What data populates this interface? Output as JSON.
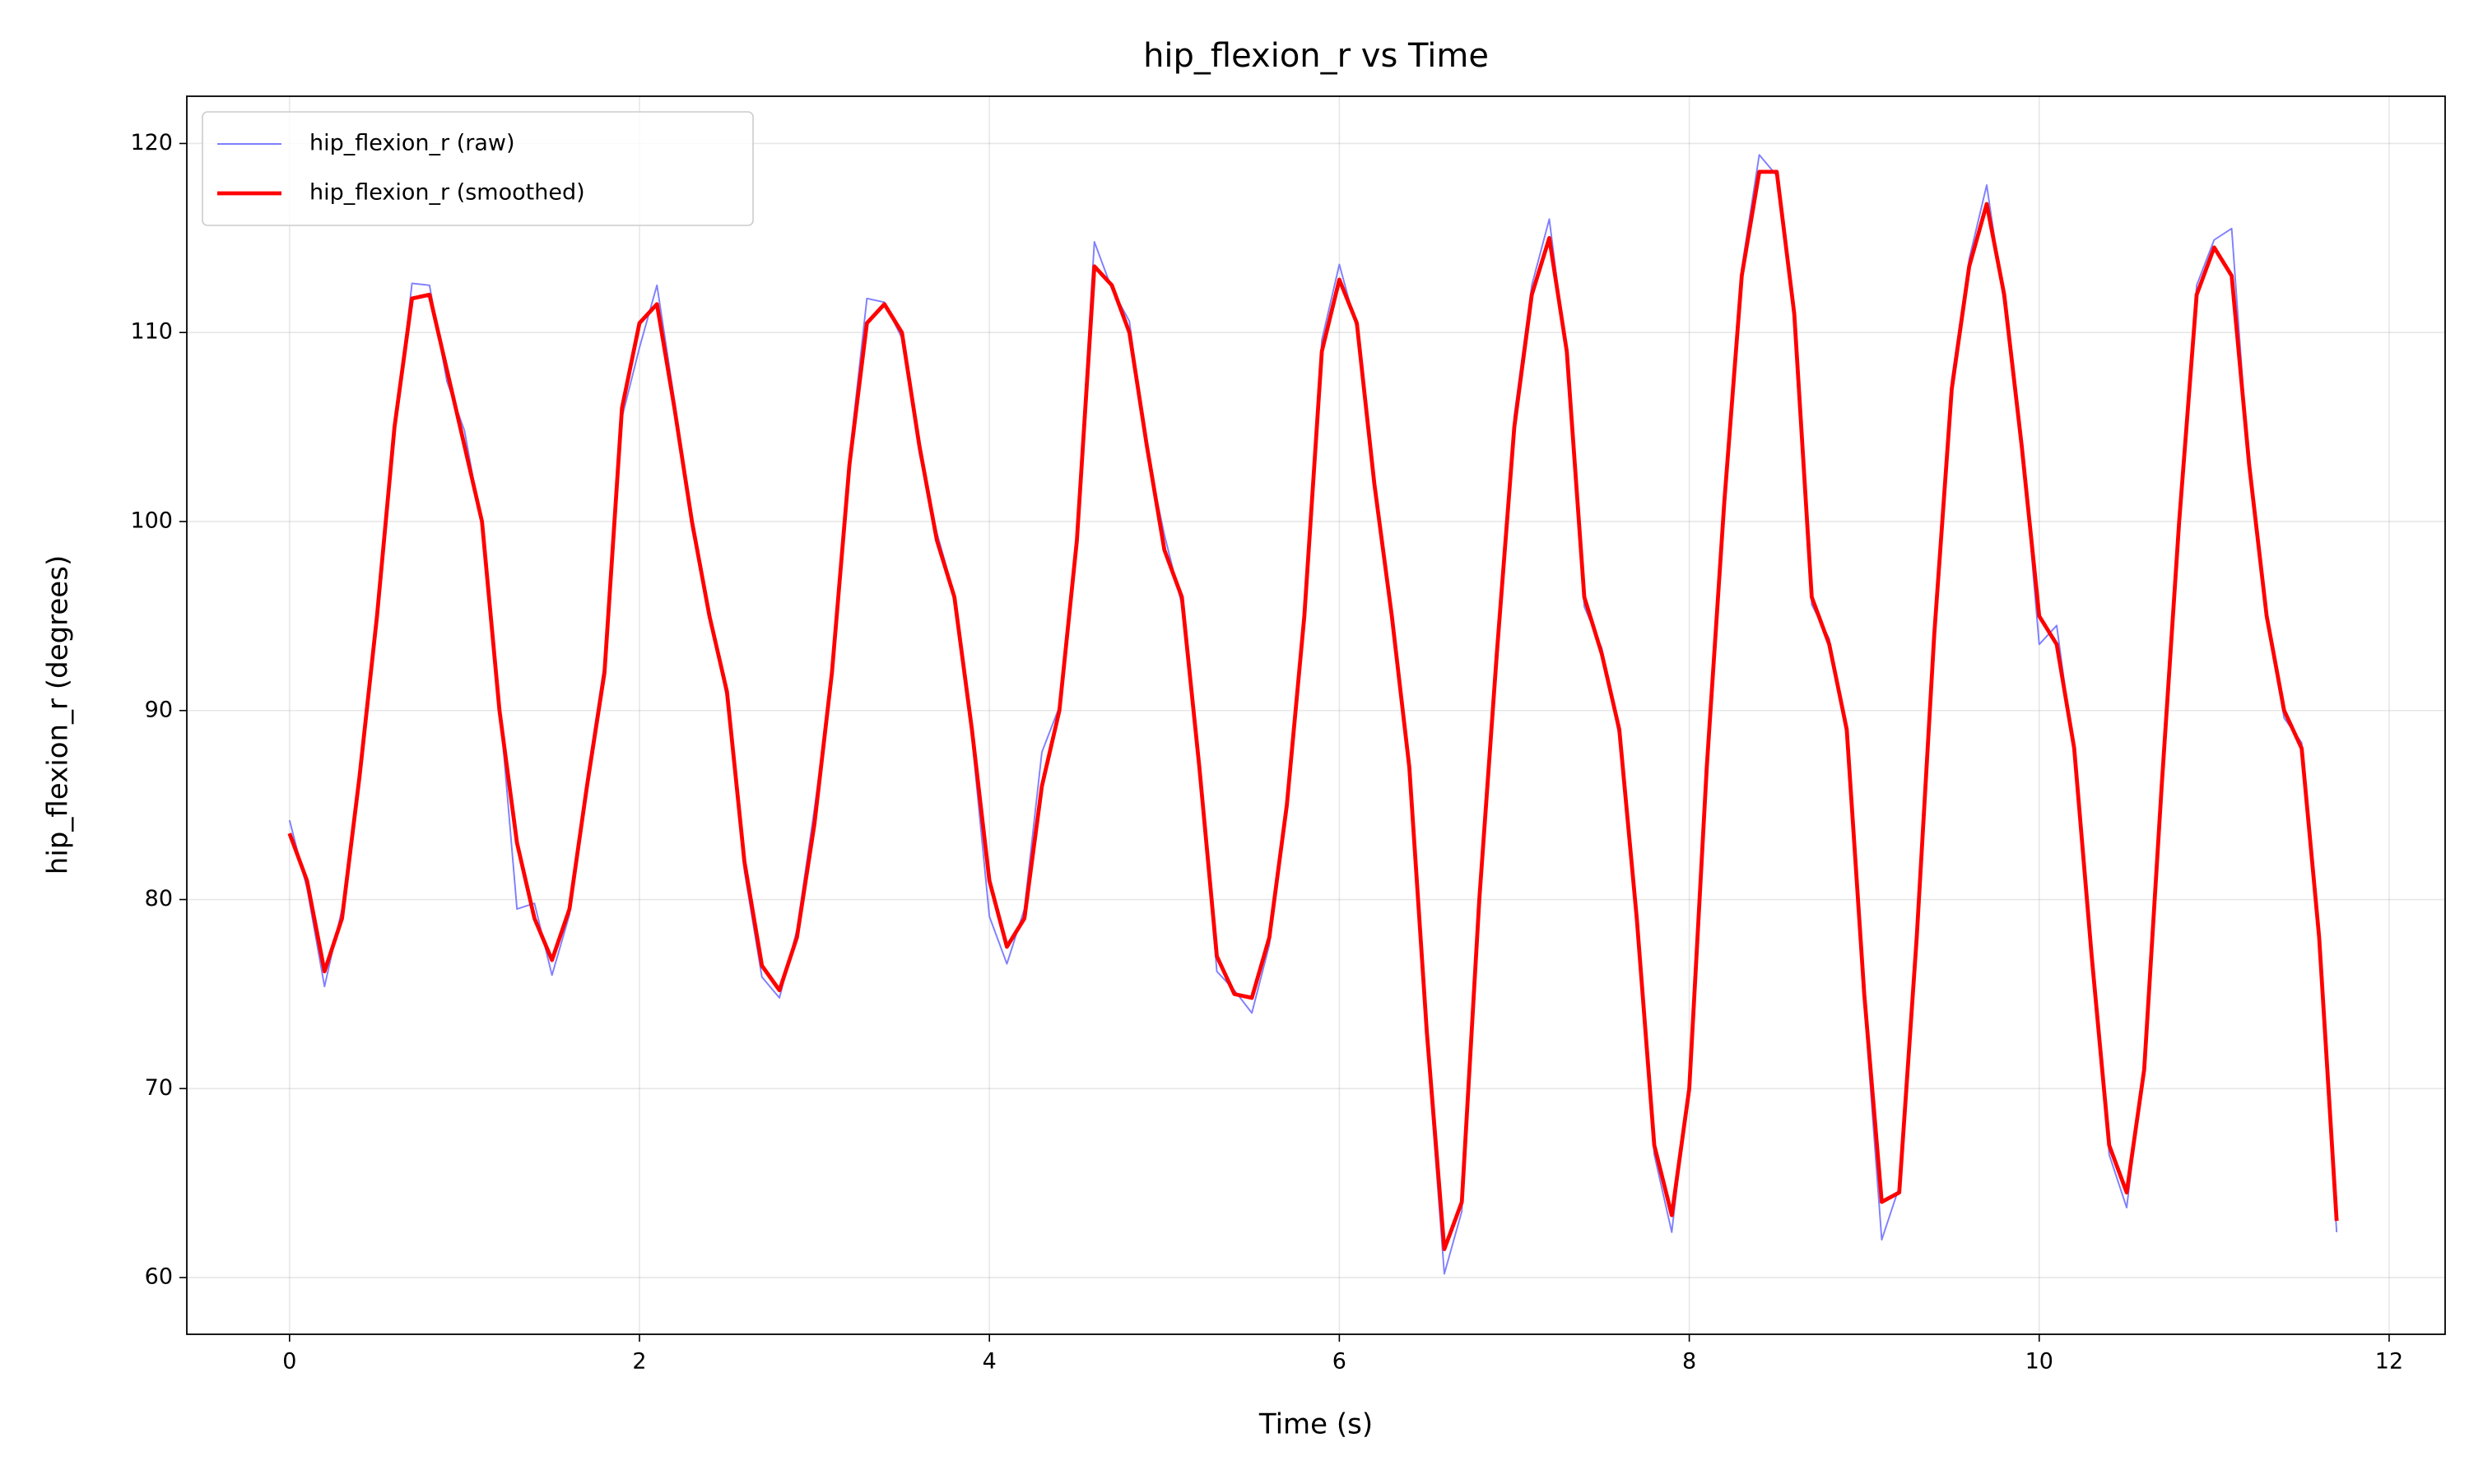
{
  "chart_data": {
    "type": "line",
    "title": "hip_flexion_r vs Time",
    "xlabel": "Time (s)",
    "ylabel": "hip_flexion_r (degrees)",
    "x": [
      0,
      0.1,
      0.2,
      0.3,
      0.4,
      0.5,
      0.6,
      0.7,
      0.8,
      0.9,
      1,
      1.1,
      1.2,
      1.3,
      1.4,
      1.5,
      1.6,
      1.7,
      1.8,
      1.9,
      2,
      2.1,
      2.2,
      2.3,
      2.4,
      2.5,
      2.6,
      2.7,
      2.8,
      2.9,
      3,
      3.1,
      3.2,
      3.3,
      3.4,
      3.5,
      3.6,
      3.7,
      3.8,
      3.9,
      4,
      4.1,
      4.2,
      4.3,
      4.4,
      4.5,
      4.6,
      4.7,
      4.8,
      4.9,
      5,
      5.1,
      5.2,
      5.3,
      5.4,
      5.5,
      5.6,
      5.7,
      5.8,
      5.9,
      6,
      6.1,
      6.2,
      6.3,
      6.4,
      6.5,
      6.6,
      6.7,
      6.8,
      6.9,
      7,
      7.1,
      7.2,
      7.3,
      7.4,
      7.5,
      7.6,
      7.7,
      7.8,
      7.9,
      8,
      8.1,
      8.2,
      8.3,
      8.4,
      8.5,
      8.6,
      8.7,
      8.8,
      8.9,
      9,
      9.1,
      9.2,
      9.3,
      9.4,
      9.5,
      9.6,
      9.7,
      9.8,
      9.9,
      10,
      10.1,
      10.2,
      10.3,
      10.4,
      10.5,
      10.6,
      10.7,
      10.8,
      10.9,
      11,
      11.1,
      11.2,
      11.3,
      11.4,
      11.5,
      11.6,
      11.7
    ],
    "series": [
      {
        "name": "hip_flexion_r (raw)",
        "color": "#7f7fff",
        "width": 1,
        "values": [
          84.2,
          80.6,
          75.4,
          79.5,
          86.2,
          95.4,
          104.6,
          112.6,
          112.5,
          107.4,
          104.8,
          99.7,
          90.4,
          79.5,
          79.8,
          76.0,
          79.2,
          86.4,
          92.5,
          105.5,
          109.2,
          112.5,
          106.4,
          99.6,
          95.3,
          90.6,
          81.5,
          75.9,
          74.8,
          78.4,
          84.8,
          91.6,
          103.4,
          111.8,
          111.6,
          109.7,
          103.6,
          99.4,
          96.1,
          88.6,
          79.1,
          76.6,
          79.5,
          87.8,
          90.2,
          99.5,
          114.8,
          112.3,
          110.6,
          103.7,
          99.3,
          95.6,
          87.3,
          76.2,
          75.2,
          74.0,
          77.6,
          85.3,
          95.4,
          109.6,
          113.6,
          110.2,
          101.6,
          95.4,
          86.8,
          72.4,
          60.2,
          63.5,
          80.4,
          92.7,
          105.6,
          112.5,
          116.0,
          108.6,
          95.5,
          93.3,
          88.6,
          79.4,
          66.5,
          62.4,
          70.5,
          86.6,
          101.5,
          113.4,
          119.4,
          118.3,
          110.5,
          95.6,
          93.8,
          88.6,
          74.5,
          62.0,
          64.8,
          77.6,
          94.4,
          107.5,
          113.9,
          117.8,
          111.5,
          104.4,
          93.5,
          94.5,
          87.6,
          77.4,
          66.5,
          63.7,
          71.4,
          86.4,
          100.3,
          112.5,
          114.9,
          115.5,
          102.6,
          94.8,
          89.6,
          88.3,
          77.5,
          62.4
        ]
      },
      {
        "name": "hip_flexion_r (smoothed)",
        "color": "#ff0000",
        "width": 2.5,
        "values": [
          83.5,
          81,
          76.2,
          79,
          86.5,
          95,
          105,
          111.8,
          112,
          108,
          104,
          100,
          90,
          83,
          79,
          76.8,
          79.5,
          86,
          92,
          106,
          110.5,
          111.5,
          106,
          100,
          95,
          91,
          82,
          76.5,
          75.2,
          78,
          84,
          92,
          103,
          110.5,
          111.5,
          110,
          104,
          99,
          96,
          89,
          81,
          77.5,
          79,
          86,
          90,
          99,
          113.5,
          112.5,
          110,
          104,
          98.5,
          96,
          87,
          77,
          75,
          74.8,
          78,
          85,
          95,
          109,
          112.8,
          110.5,
          102,
          95,
          87,
          73,
          61.5,
          64,
          80,
          93,
          105,
          112,
          115,
          109,
          96,
          93,
          89,
          79,
          67,
          63.3,
          70,
          87,
          101,
          113,
          118.5,
          118.5,
          111,
          96,
          93.5,
          89,
          75,
          64,
          64.5,
          78,
          94,
          107,
          113.5,
          116.8,
          112,
          104,
          95,
          93.5,
          88,
          77,
          67,
          64.5,
          71,
          86,
          100,
          112,
          114.5,
          113,
          103,
          95,
          90,
          88,
          78,
          63
        ]
      }
    ],
    "xlim": [
      -0.587,
      12.32
    ],
    "ylim": [
      57.0,
      122.5
    ],
    "xticks": [
      0,
      2,
      4,
      6,
      8,
      10,
      12
    ],
    "yticks": [
      60,
      70,
      80,
      90,
      100,
      110,
      120
    ],
    "grid": true,
    "legend": "upper-left"
  }
}
